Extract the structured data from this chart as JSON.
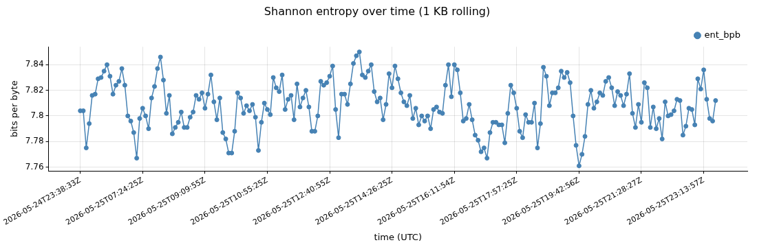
{
  "chart_data": {
    "type": "line",
    "title": "Shannon entropy over time (1 KB rolling)",
    "xlabel": "time (UTC)",
    "ylabel": "bits per byte",
    "categories": [
      "2026-05-24T23:38:33Z",
      null,
      null,
      null,
      null,
      null,
      null,
      null,
      null,
      null,
      null,
      null,
      null,
      null,
      null,
      null,
      null,
      null,
      null,
      null,
      null,
      "2026-05-25T07:24:25Z",
      null,
      null,
      null,
      null,
      null,
      null,
      null,
      null,
      null,
      null,
      null,
      null,
      null,
      null,
      null,
      null,
      null,
      null,
      null,
      null,
      "2026-05-25T09:09:55Z",
      null,
      null,
      null,
      null,
      null,
      null,
      null,
      null,
      null,
      null,
      null,
      null,
      null,
      null,
      null,
      null,
      null,
      null,
      null,
      null,
      "2026-05-25T10:55:25Z",
      null,
      null,
      null,
      null,
      null,
      null,
      null,
      null,
      null,
      null,
      null,
      null,
      null,
      null,
      null,
      null,
      null,
      null,
      null,
      null,
      "2026-05-25T12:40:55Z",
      null,
      null,
      null,
      null,
      null,
      null,
      null,
      null,
      null,
      null,
      null,
      null,
      null,
      null,
      null,
      null,
      null,
      null,
      null,
      null,
      "2026-05-25T14:26:25Z",
      null,
      null,
      null,
      null,
      null,
      null,
      null,
      null,
      null,
      null,
      null,
      null,
      null,
      null,
      null,
      null,
      null,
      null,
      null,
      null,
      "2026-05-25T16:11:54Z",
      null,
      null,
      null,
      null,
      null,
      null,
      null,
      null,
      null,
      null,
      null,
      null,
      null,
      null,
      null,
      null,
      null,
      null,
      null,
      null,
      "2026-05-25T17:57:25Z",
      null,
      null,
      null,
      null,
      null,
      null,
      null,
      null,
      null,
      null,
      null,
      null,
      null,
      null,
      null,
      null,
      null,
      null,
      null,
      null,
      "2026-05-25T19:42:56Z",
      null,
      null,
      null,
      null,
      null,
      null,
      null,
      null,
      null,
      null,
      null,
      null,
      null,
      null,
      null,
      null,
      null,
      null,
      null,
      null,
      "2026-05-25T21:28:27Z",
      null,
      null,
      null,
      null,
      null,
      null,
      null,
      null,
      null,
      null,
      null,
      null,
      null,
      null,
      null,
      null,
      null,
      null,
      null,
      null,
      "2026-05-25T23:13:57Z",
      null,
      null,
      null,
      null
    ],
    "series": [
      {
        "name": "ent_bpb",
        "color": "#4682b4",
        "values": [
          7.804,
          7.804,
          7.775,
          7.794,
          7.816,
          7.817,
          7.829,
          7.83,
          7.835,
          7.84,
          7.831,
          7.817,
          7.824,
          7.827,
          7.837,
          7.824,
          7.8,
          7.796,
          7.787,
          7.767,
          7.798,
          7.806,
          7.8,
          7.79,
          7.814,
          7.823,
          7.837,
          7.846,
          7.828,
          7.802,
          7.816,
          7.786,
          7.791,
          7.795,
          7.803,
          7.791,
          7.791,
          7.799,
          7.803,
          7.816,
          7.813,
          7.818,
          7.806,
          7.817,
          7.832,
          7.811,
          7.797,
          7.814,
          7.787,
          7.782,
          7.771,
          7.771,
          7.788,
          7.818,
          7.814,
          7.802,
          7.808,
          7.804,
          7.809,
          7.799,
          7.773,
          7.795,
          7.81,
          7.805,
          7.801,
          7.83,
          7.822,
          7.819,
          7.832,
          7.805,
          7.813,
          7.816,
          7.797,
          7.825,
          7.807,
          7.814,
          7.82,
          7.807,
          7.788,
          7.788,
          7.8,
          7.827,
          7.824,
          7.826,
          7.831,
          7.839,
          7.805,
          7.783,
          7.817,
          7.817,
          7.809,
          7.825,
          7.841,
          7.847,
          7.85,
          7.832,
          7.83,
          7.835,
          7.84,
          7.819,
          7.811,
          7.814,
          7.797,
          7.809,
          7.833,
          7.822,
          7.839,
          7.829,
          7.818,
          7.811,
          7.808,
          7.816,
          7.798,
          7.806,
          7.793,
          7.8,
          7.796,
          7.8,
          7.79,
          7.805,
          7.807,
          7.803,
          7.802,
          7.824,
          7.84,
          7.815,
          7.84,
          7.836,
          7.818,
          7.796,
          7.798,
          7.809,
          7.797,
          7.785,
          7.781,
          7.772,
          7.775,
          7.767,
          7.787,
          7.795,
          7.795,
          7.793,
          7.793,
          7.779,
          7.802,
          7.824,
          7.818,
          7.806,
          7.788,
          7.783,
          7.801,
          7.795,
          7.795,
          7.81,
          7.775,
          7.794,
          7.838,
          7.831,
          7.808,
          7.818,
          7.818,
          7.822,
          7.835,
          7.83,
          7.834,
          7.826,
          7.8,
          7.777,
          7.761,
          7.77,
          7.784,
          7.809,
          7.82,
          7.806,
          7.811,
          7.818,
          7.816,
          7.827,
          7.83,
          7.822,
          7.808,
          7.819,
          7.816,
          7.808,
          7.817,
          7.833,
          7.802,
          7.791,
          7.809,
          7.795,
          7.826,
          7.822,
          7.791,
          7.807,
          7.79,
          7.798,
          7.782,
          7.811,
          7.8,
          7.801,
          7.804,
          7.813,
          7.812,
          7.785,
          7.792,
          7.806,
          7.805,
          7.793,
          7.829,
          7.821,
          7.836,
          7.813,
          7.798,
          7.796,
          7.812
        ]
      }
    ],
    "ylim": [
      7.757,
      7.854
    ],
    "yticks": [
      7.76,
      7.78,
      7.8,
      7.82,
      7.84
    ],
    "grid": true,
    "legend": "top right",
    "marker": "circle",
    "line_style": "solid"
  }
}
